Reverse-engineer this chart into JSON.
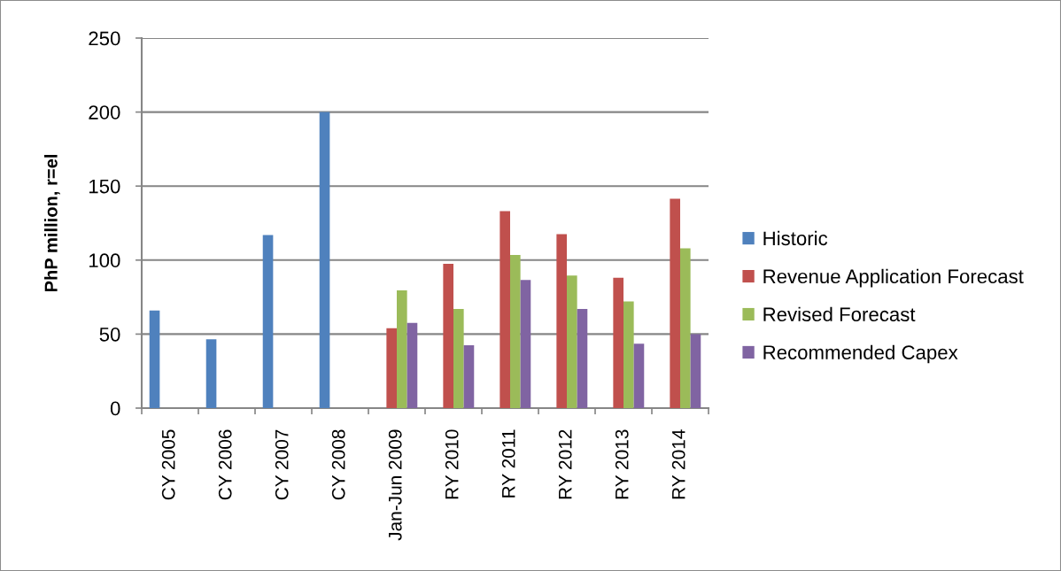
{
  "chart_data": {
    "type": "bar",
    "ylabel": "PhP million, r=el",
    "categories": [
      "CY 2005",
      "CY 2006",
      "CY 2007",
      "CY 2008",
      "Jan-Jun 2009",
      "RY 2010",
      "RY 2011",
      "RY 2012",
      "RY 2013",
      "RY 2014"
    ],
    "series": [
      {
        "name": "Historic",
        "color": "#4f81bd",
        "values": [
          66,
          46.5,
          117,
          200,
          null,
          null,
          null,
          null,
          null,
          null
        ]
      },
      {
        "name": "Revenue Application Forecast",
        "color": "#c0504d",
        "values": [
          null,
          null,
          null,
          null,
          54,
          97.5,
          133,
          117.5,
          88,
          141.5
        ]
      },
      {
        "name": "Revised Forecast",
        "color": "#9bbb59",
        "values": [
          null,
          null,
          null,
          null,
          79.5,
          67,
          103.5,
          89.5,
          72,
          108
        ]
      },
      {
        "name": "Recommended Capex",
        "color": "#8064a2",
        "values": [
          null,
          null,
          null,
          null,
          57.5,
          42.5,
          86.5,
          67,
          43.5,
          50
        ]
      }
    ],
    "ylim": [
      0,
      250
    ],
    "yticks": [
      0,
      50,
      100,
      150,
      200,
      250
    ],
    "grid": "y",
    "legend": "right"
  }
}
